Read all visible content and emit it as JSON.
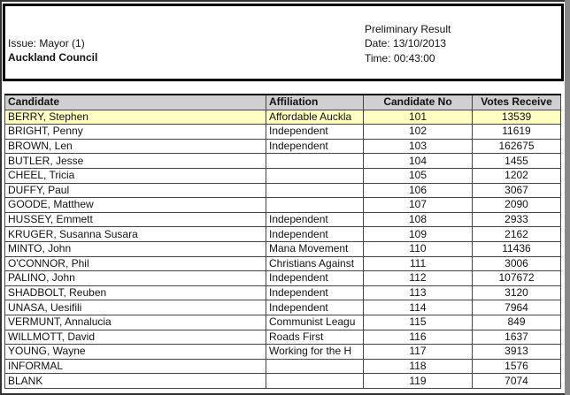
{
  "header": {
    "issue": "Issue: Mayor (1)",
    "council": "Auckland Council",
    "status": "Preliminary Result",
    "date": "Date: 13/10/2013",
    "time": "Time: 00:43:00"
  },
  "table": {
    "columns": [
      "Candidate",
      "Affiliation",
      "Candidate No",
      "Votes Receive"
    ],
    "rows": [
      {
        "candidate": "BERRY, Stephen",
        "affiliation": "Affordable Auckla",
        "number": 101,
        "votes": 13539
      },
      {
        "candidate": "BRIGHT, Penny",
        "affiliation": "Independent",
        "number": 102,
        "votes": 11619
      },
      {
        "candidate": "BROWN, Len",
        "affiliation": "Independent",
        "number": 103,
        "votes": 162675
      },
      {
        "candidate": "BUTLER, Jesse",
        "number": 104,
        "votes": 1455
      },
      {
        "candidate": "CHEEL, Tricia",
        "number": 105,
        "votes": 1202
      },
      {
        "candidate": "DUFFY, Paul",
        "number": 106,
        "votes": 3067
      },
      {
        "candidate": "GOODE, Matthew",
        "number": 107,
        "votes": 2090
      },
      {
        "candidate": "HUSSEY, Emmett",
        "affiliation": "Independent",
        "number": 108,
        "votes": 2933
      },
      {
        "candidate": "KRUGER, Susanna Susara",
        "affiliation": "Independent",
        "number": 109,
        "votes": 2162
      },
      {
        "candidate": "MINTO, John",
        "affiliation": "Mana Movement",
        "number": 110,
        "votes": 11436
      },
      {
        "candidate": "O'CONNOR, Phil",
        "affiliation": "Christians Against",
        "number": 111,
        "votes": 3006
      },
      {
        "candidate": "PALINO, John",
        "affiliation": "Independent",
        "number": 112,
        "votes": 107672
      },
      {
        "candidate": "SHADBOLT, Reuben",
        "affiliation": "Independent",
        "number": 113,
        "votes": 3120
      },
      {
        "candidate": "UNASA, Uesifili",
        "affiliation": "Independent",
        "number": 114,
        "votes": 7964
      },
      {
        "candidate": "VERMUNT, Annalucia",
        "affiliation": "Communist Leagu",
        "number": 115,
        "votes": 849
      },
      {
        "candidate": "WILLMOTT, David",
        "affiliation": "Roads First",
        "number": 116,
        "votes": 1637
      },
      {
        "candidate": "YOUNG, Wayne",
        "affiliation": "Working for the H",
        "number": 117,
        "votes": 3913
      },
      {
        "candidate": "INFORMAL",
        "number": 118,
        "votes": 1576
      },
      {
        "candidate": "BLANK",
        "number": 119,
        "votes": 7074
      }
    ]
  }
}
